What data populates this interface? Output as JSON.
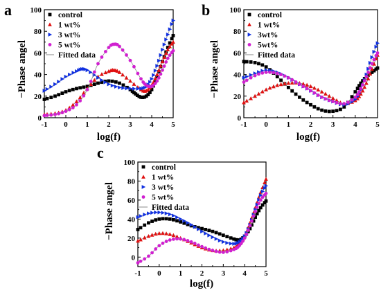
{
  "figure": {
    "x_ticks": [
      "-1",
      "0",
      "1",
      "2",
      "3",
      "4",
      "5"
    ],
    "y_ticks_ab": [
      "0",
      "20",
      "40",
      "60",
      "80",
      "100"
    ],
    "y_ticks_c": [
      "0",
      "20",
      "40",
      "60",
      "80",
      "100"
    ]
  },
  "chart_data": [
    {
      "panel_label": "a",
      "type": "scatter",
      "xlabel": "log(f)",
      "ylabel": "−Phase angel",
      "xlim": [
        -1,
        5
      ],
      "ylim": [
        0,
        100
      ],
      "grid": false,
      "legend_placement": "top-left",
      "fitted_label": "Fitted data",
      "series": [
        {
          "name": "control",
          "marker": "square",
          "color": "#000000",
          "x": [
            -1,
            -0.5,
            0,
            0.5,
            1,
            1.5,
            2,
            2.5,
            3,
            3.25,
            3.5,
            3.75,
            4,
            4.25,
            4.5,
            4.75,
            5
          ],
          "y": [
            17,
            20,
            24,
            27,
            29,
            32,
            34,
            32,
            26,
            22,
            19,
            20,
            26,
            38,
            52,
            65,
            76
          ]
        },
        {
          "name": "1 wt%",
          "marker": "triangle-up",
          "color": "#e01010",
          "x": [
            -1,
            -0.5,
            0,
            0.5,
            1,
            1.5,
            2,
            2.25,
            2.5,
            3,
            3.5,
            3.75,
            4,
            4.25,
            4.5,
            4.75,
            5
          ],
          "y": [
            3,
            4,
            7,
            15,
            27,
            38,
            43,
            44,
            42,
            34,
            26,
            25,
            30,
            40,
            52,
            63,
            70
          ]
        },
        {
          "name": "3 wt%",
          "marker": "triangle-right",
          "color": "#1030e0",
          "x": [
            -1,
            -0.5,
            0,
            0.5,
            0.75,
            1,
            1.5,
            2,
            2.5,
            3,
            3.5,
            3.75,
            4,
            4.25,
            4.5,
            4.75,
            5
          ],
          "y": [
            25,
            31,
            38,
            43,
            45,
            44,
            37,
            31,
            28,
            27,
            27,
            29,
            36,
            48,
            63,
            77,
            90
          ]
        },
        {
          "name": "5 wt%",
          "marker": "circle",
          "color": "#d020d0",
          "x": [
            -1,
            -0.5,
            0,
            0.5,
            1,
            1.5,
            2,
            2.25,
            2.5,
            3,
            3.5,
            3.75,
            4,
            4.25,
            4.5,
            4.75,
            5
          ],
          "y": [
            2,
            3,
            6,
            12,
            26,
            50,
            65,
            68,
            66,
            53,
            36,
            30,
            29,
            34,
            44,
            55,
            62
          ]
        }
      ]
    },
    {
      "panel_label": "b",
      "type": "scatter",
      "xlabel": "log(f)",
      "ylabel": "−Phase angel",
      "xlim": [
        -1,
        5
      ],
      "ylim": [
        0,
        100
      ],
      "grid": false,
      "legend_placement": "top-left",
      "fitted_label": "Fitted data",
      "series": [
        {
          "name": "control",
          "marker": "square",
          "color": "#000000",
          "x": [
            -1,
            -0.5,
            0,
            0.5,
            1,
            1.5,
            2,
            2.5,
            3,
            3.5,
            4,
            4.25,
            4.5,
            4.75,
            5
          ],
          "y": [
            52,
            51,
            47,
            38,
            28,
            19,
            12,
            7,
            6,
            10,
            24,
            32,
            38,
            42,
            46
          ]
        },
        {
          "name": "1 wt%",
          "marker": "triangle-up",
          "color": "#e01010",
          "x": [
            -1,
            -0.5,
            0,
            0.5,
            1,
            1.5,
            2,
            2.5,
            3,
            3.5,
            4,
            4.25,
            4.5,
            4.75,
            5
          ],
          "y": [
            14,
            20,
            26,
            30,
            32,
            32,
            29,
            24,
            18,
            13,
            16,
            22,
            32,
            45,
            58
          ]
        },
        {
          "name": "3wt%",
          "marker": "triangle-right",
          "color": "#1030e0",
          "x": [
            -1,
            -0.5,
            0,
            0.5,
            1,
            1.5,
            2,
            2.5,
            3,
            3.5,
            4,
            4.25,
            4.5,
            4.75,
            5
          ],
          "y": [
            37,
            41,
            44,
            42,
            37,
            31,
            25,
            19,
            15,
            12,
            17,
            26,
            40,
            56,
            69
          ]
        },
        {
          "name": "5wt%",
          "marker": "circle",
          "color": "#d020d0",
          "x": [
            -1,
            -0.5,
            0,
            0.5,
            1,
            1.5,
            2,
            2.5,
            3,
            3.5,
            4,
            4.25,
            4.5,
            4.75,
            5
          ],
          "y": [
            33,
            39,
            42,
            41,
            37,
            31,
            25,
            19,
            15,
            13,
            19,
            27,
            38,
            50,
            60
          ]
        }
      ]
    },
    {
      "panel_label": "c",
      "type": "scatter",
      "xlabel": "log(f)",
      "ylabel": "−Phase angel",
      "xlim": [
        -1,
        5
      ],
      "ylim": [
        -10,
        100
      ],
      "grid": false,
      "legend_placement": "top-left",
      "fitted_label": "Fitted data",
      "series": [
        {
          "name": "control",
          "marker": "square",
          "color": "#000000",
          "x": [
            -1,
            -0.5,
            0,
            0.5,
            1,
            1.5,
            2,
            2.5,
            3,
            3.5,
            3.75,
            4,
            4.25,
            4.5,
            4.75,
            5
          ],
          "y": [
            29,
            36,
            40,
            40,
            37,
            33,
            30,
            27,
            23,
            19,
            18,
            22,
            30,
            42,
            52,
            59
          ]
        },
        {
          "name": "1 wt%",
          "marker": "triangle-up",
          "color": "#e01010",
          "x": [
            -1,
            -0.5,
            0,
            0.5,
            1,
            1.5,
            2,
            2.5,
            3,
            3.5,
            3.75,
            4,
            4.25,
            4.5,
            4.75,
            5
          ],
          "y": [
            17,
            22,
            25,
            24,
            20,
            15,
            10,
            7,
            7,
            10,
            14,
            22,
            36,
            52,
            68,
            82
          ]
        },
        {
          "name": "3 wt%",
          "marker": "triangle-right",
          "color": "#1030e0",
          "x": [
            -1,
            -0.5,
            0,
            0.5,
            1,
            1.5,
            2,
            2.5,
            3,
            3.5,
            3.75,
            4,
            4.25,
            4.5,
            4.75,
            5
          ],
          "y": [
            42,
            46,
            47,
            45,
            40,
            34,
            27,
            21,
            16,
            14,
            16,
            22,
            34,
            50,
            65,
            75
          ]
        },
        {
          "name": "5 wt%",
          "marker": "circle",
          "color": "#d020d0",
          "x": [
            -1,
            -0.5,
            0,
            0.5,
            1,
            1.5,
            2,
            2.5,
            3,
            3.5,
            3.75,
            4,
            4.25,
            4.5,
            4.75,
            5
          ],
          "y": [
            -6,
            1,
            12,
            18,
            19,
            16,
            11,
            7,
            5,
            8,
            12,
            20,
            33,
            48,
            60,
            67
          ]
        }
      ]
    }
  ]
}
